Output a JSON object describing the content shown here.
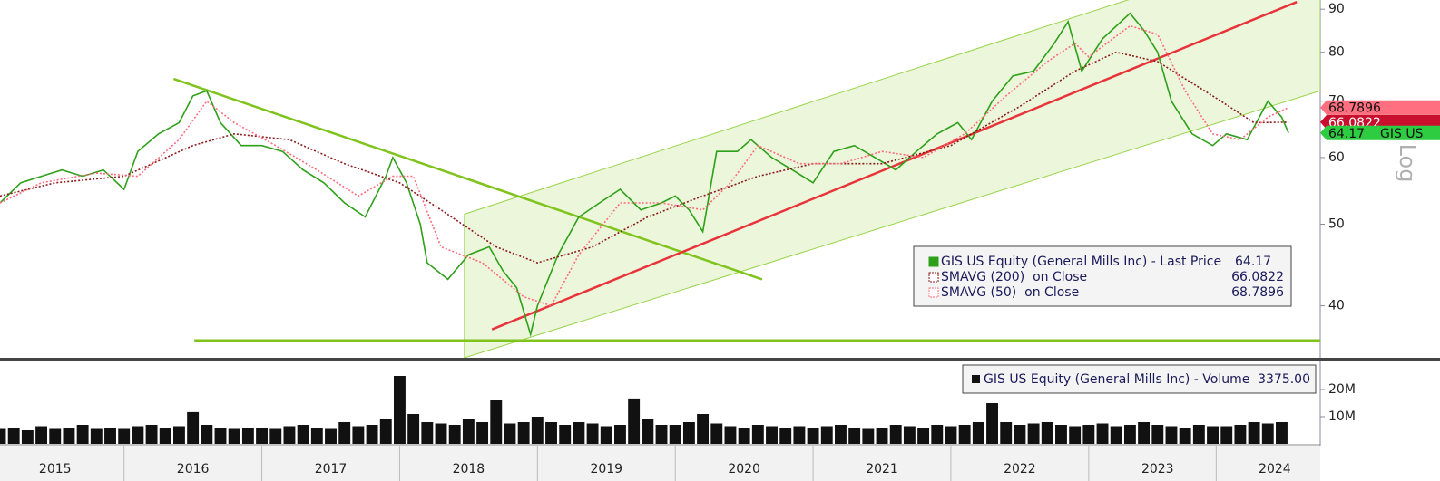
{
  "chart_data": [
    {
      "type": "line",
      "log": true,
      "scale_label": "Log",
      "ticker": "GIS US",
      "xlim": [
        2015.1,
        2024.68
      ],
      "ylim": [
        34.7,
        92.3
      ],
      "xticks": [
        {
          "value": 2015.5,
          "label": "2015"
        },
        {
          "value": 2016.5,
          "label": "2016"
        },
        {
          "value": 2017.5,
          "label": "2017"
        },
        {
          "value": 2018.5,
          "label": "2018"
        },
        {
          "value": 2019.5,
          "label": "2019"
        },
        {
          "value": 2020.5,
          "label": "2020"
        },
        {
          "value": 2021.5,
          "label": "2021"
        },
        {
          "value": 2022.5,
          "label": "2022"
        },
        {
          "value": 2023.5,
          "label": "2023"
        },
        {
          "value": 2024.35,
          "label": "2024"
        }
      ],
      "yticks": [
        40,
        50,
        60,
        70,
        80,
        90
      ],
      "series": [
        {
          "name": "GIS US Equity (General Mills Inc) - Last Price",
          "color": "#2ea01a",
          "x": [
            2015.1,
            2015.25,
            2015.4,
            2015.55,
            2015.7,
            2015.85,
            2016.0,
            2016.1,
            2016.25,
            2016.4,
            2016.5,
            2016.6,
            2016.7,
            2016.85,
            2017.0,
            2017.15,
            2017.3,
            2017.45,
            2017.6,
            2017.75,
            2017.9,
            2017.95,
            2018.05,
            2018.15,
            2018.2,
            2018.35,
            2018.5,
            2018.65,
            2018.75,
            2018.85,
            2018.95,
            2019.0,
            2019.15,
            2019.3,
            2019.45,
            2019.6,
            2019.75,
            2019.9,
            2020.0,
            2020.1,
            2020.2,
            2020.3,
            2020.45,
            2020.55,
            2020.7,
            2020.85,
            2021.0,
            2021.15,
            2021.3,
            2021.45,
            2021.6,
            2021.75,
            2021.9,
            2022.05,
            2022.15,
            2022.3,
            2022.45,
            2022.6,
            2022.75,
            2022.85,
            2022.95,
            2023.1,
            2023.3,
            2023.4,
            2023.5,
            2023.6,
            2023.75,
            2023.9,
            2024.0,
            2024.15,
            2024.3,
            2024.4,
            2024.45
          ],
          "values": [
            53,
            56,
            57,
            58,
            57,
            58,
            55,
            61,
            64,
            66,
            71,
            72,
            66,
            62,
            62,
            61,
            58,
            56,
            53,
            51,
            57,
            60,
            56,
            50,
            45,
            43,
            46,
            47,
            44,
            42,
            37,
            40,
            46,
            51,
            53,
            55,
            52,
            53,
            54,
            52,
            49,
            61,
            61,
            63,
            60,
            58,
            56,
            61,
            62,
            60,
            58,
            61,
            64,
            66,
            63,
            70,
            75,
            76,
            82,
            87,
            76,
            83,
            89,
            85,
            80,
            70,
            64,
            62,
            64,
            63,
            70,
            67,
            64.17
          ]
        },
        {
          "name": "SMAVG (200)  on Close",
          "color": "#8b1a1a",
          "x": [
            2015.1,
            2015.5,
            2016.0,
            2016.5,
            2016.8,
            2017.2,
            2017.6,
            2018.0,
            2018.3,
            2018.7,
            2019.0,
            2019.4,
            2019.8,
            2020.2,
            2020.6,
            2021.0,
            2021.5,
            2022.0,
            2022.5,
            2022.9,
            2023.2,
            2023.5,
            2023.9,
            2024.2,
            2024.45
          ],
          "values": [
            54,
            56,
            57,
            62,
            64,
            63,
            59,
            56,
            52,
            47,
            45,
            47,
            51,
            54,
            57,
            59,
            59,
            62,
            69,
            76,
            80,
            78,
            71,
            66,
            66.0822
          ]
        },
        {
          "name": "SMAVG (50)  on Close",
          "color": "#ff6b7a",
          "x": [
            2015.1,
            2015.4,
            2015.8,
            2016.1,
            2016.4,
            2016.6,
            2016.8,
            2017.1,
            2017.4,
            2017.7,
            2017.95,
            2018.1,
            2018.3,
            2018.6,
            2018.9,
            2019.1,
            2019.3,
            2019.6,
            2019.9,
            2020.2,
            2020.4,
            2020.6,
            2020.9,
            2021.2,
            2021.5,
            2021.8,
            2022.1,
            2022.4,
            2022.7,
            2022.9,
            2023.0,
            2023.3,
            2023.5,
            2023.7,
            2023.9,
            2024.1,
            2024.3,
            2024.45
          ],
          "values": [
            53,
            56,
            57.5,
            57,
            63,
            70,
            66,
            62,
            58,
            54,
            57,
            57,
            47,
            45,
            41,
            40,
            46,
            53,
            53,
            52,
            56,
            62,
            59,
            59,
            61,
            60,
            64,
            71,
            78,
            82,
            79,
            86,
            84,
            72,
            64,
            63,
            67,
            68.7896
          ]
        }
      ],
      "channel": {
        "color": "#9ad44a",
        "x": [
          2018.47,
          2024.68
        ],
        "lower": [
          34.7,
          72.0
        ],
        "upper": [
          51.4,
          109.4
        ]
      },
      "trendlines": [
        {
          "color": "#7fc31c",
          "x": [
            2016.36,
            2020.63
          ],
          "y": [
            74.4,
            43.0
          ]
        },
        {
          "color": "#7fc31c",
          "x": [
            2016.51,
            2024.68
          ],
          "y": [
            36.4,
            36.4
          ]
        },
        {
          "color": "#e8333a",
          "x": [
            2018.67,
            2024.51
          ],
          "y": [
            37.5,
            91.8
          ]
        }
      ]
    },
    {
      "type": "bar",
      "name": "GIS US Equity (General Mills Inc) - Volume",
      "last_label": "3375.00",
      "color": "#111111",
      "ylim": [
        0,
        30000000
      ],
      "yticks": [
        {
          "value": 10000000,
          "label": "10M"
        },
        {
          "value": 20000000,
          "label": "20M"
        }
      ],
      "x": [
        2015.1,
        2015.2,
        2015.3,
        2015.4,
        2015.5,
        2015.6,
        2015.7,
        2015.8,
        2015.9,
        2016.0,
        2016.1,
        2016.2,
        2016.3,
        2016.4,
        2016.5,
        2016.6,
        2016.7,
        2016.8,
        2016.9,
        2017.0,
        2017.1,
        2017.2,
        2017.3,
        2017.4,
        2017.5,
        2017.6,
        2017.7,
        2017.8,
        2017.9,
        2018.0,
        2018.1,
        2018.2,
        2018.3,
        2018.4,
        2018.5,
        2018.6,
        2018.7,
        2018.8,
        2018.9,
        2019.0,
        2019.1,
        2019.2,
        2019.3,
        2019.4,
        2019.5,
        2019.6,
        2019.7,
        2019.8,
        2019.9,
        2020.0,
        2020.1,
        2020.2,
        2020.3,
        2020.4,
        2020.5,
        2020.6,
        2020.7,
        2020.8,
        2020.9,
        2021.0,
        2021.1,
        2021.2,
        2021.3,
        2021.4,
        2021.5,
        2021.6,
        2021.7,
        2021.8,
        2021.9,
        2022.0,
        2022.1,
        2022.2,
        2022.3,
        2022.4,
        2022.5,
        2022.6,
        2022.7,
        2022.8,
        2022.9,
        2023.0,
        2023.1,
        2023.2,
        2023.3,
        2023.4,
        2023.5,
        2023.6,
        2023.7,
        2023.8,
        2023.9,
        2024.0,
        2024.1,
        2024.2,
        2024.3,
        2024.4
      ],
      "values": [
        5500000.0,
        6000000.0,
        5000000.0,
        6500000.0,
        5500000.0,
        6000000.0,
        7000000.0,
        5500000.0,
        6000000.0,
        5500000.0,
        6500000.0,
        7000000.0,
        6000000.0,
        6500000.0,
        11700000.0,
        7000000.0,
        6000000.0,
        5500000.0,
        6000000.0,
        6000000.0,
        5500000.0,
        6500000.0,
        7000000.0,
        6000000.0,
        5500000.0,
        8000000.0,
        6500000.0,
        7000000.0,
        9000000.0,
        25000000.0,
        11000000.0,
        8000000.0,
        7500000.0,
        7000000.0,
        9000000.0,
        8000000.0,
        16000000.0,
        7500000.0,
        8000000.0,
        10000000.0,
        8000000.0,
        7000000.0,
        8000000.0,
        7500000.0,
        6500000.0,
        7000000.0,
        16700000.0,
        9000000.0,
        7000000.0,
        7000000.0,
        8000000.0,
        11000000.0,
        7500000.0,
        6500000.0,
        6000000.0,
        7000000.0,
        6500000.0,
        6000000.0,
        6500000.0,
        6000000.0,
        6500000.0,
        7000000.0,
        6000000.0,
        5500000.0,
        6000000.0,
        7000000.0,
        6500000.0,
        6000000.0,
        7000000.0,
        6500000.0,
        7000000.0,
        8000000.0,
        15000000.0,
        8000000.0,
        7000000.0,
        7500000.0,
        8000000.0,
        7000000.0,
        6500000.0,
        7000000.0,
        7500000.0,
        6500000.0,
        7000000.0,
        8000000.0,
        7000000.0,
        6500000.0,
        6000000.0,
        7000000.0,
        6500000.0,
        6500000.0,
        7000000.0,
        8000000.0,
        7500000.0,
        8000000.0
      ]
    }
  ]
}
